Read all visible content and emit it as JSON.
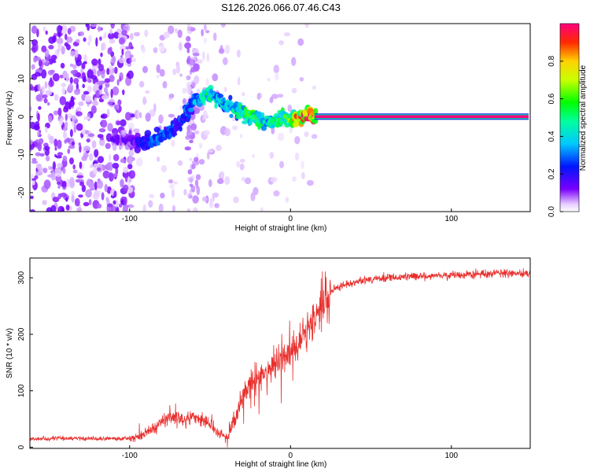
{
  "chart_data": [
    {
      "type": "heatmap",
      "title": "S126.2026.066.07.46.C43",
      "xlabel": "Height of straight line (km)",
      "ylabel": "Frequency (Hz)",
      "xlim": [
        -162,
        149
      ],
      "ylim": [
        -25,
        24.5
      ],
      "xticks": [
        -100,
        0,
        100
      ],
      "xtick_labels": [
        "-100",
        "0",
        "100"
      ],
      "yticks": [
        -20,
        -10,
        0,
        10,
        20
      ],
      "ytick_labels": [
        "-20",
        "-10",
        "0",
        "10",
        "20"
      ],
      "colorbar": {
        "label": "Normalized spectral amplitude",
        "range": [
          0,
          1
        ],
        "ticks": [
          0.0,
          0.2,
          0.4,
          0.6,
          0.8
        ],
        "tick_labels": [
          "0.0",
          "0.2",
          "0.4",
          "0.6",
          "0.8"
        ]
      },
      "ridge": {
        "description": "dominant spectral ridge (frequency in Hz vs height in km)",
        "x": [
          -100,
          -95,
          -90,
          -85,
          -80,
          -75,
          -70,
          -65,
          -60,
          -55,
          -50,
          -45,
          -40,
          -35,
          -30,
          -25,
          -20,
          -15,
          -10,
          -5,
          0,
          5,
          10,
          15,
          148
        ],
        "y": [
          -6,
          -6.5,
          -7,
          -6,
          -5,
          -4,
          -2,
          1,
          4,
          5.5,
          5.5,
          4,
          3,
          2,
          1,
          0,
          -1,
          -1.5,
          -1.5,
          -0.8,
          -0.5,
          0,
          0.3,
          0.3,
          0
        ],
        "amplitude": [
          0.15,
          0.2,
          0.25,
          0.3,
          0.32,
          0.3,
          0.3,
          0.3,
          0.35,
          0.45,
          0.5,
          0.45,
          0.4,
          0.45,
          0.55,
          0.6,
          0.55,
          0.5,
          0.5,
          0.55,
          0.7,
          0.8,
          0.9,
          0.95,
          1.0
        ]
      },
      "constant_band": {
        "x_start": 15,
        "x_end": 148,
        "frequency": 0,
        "amplitude": 1.0
      }
    },
    {
      "type": "line",
      "xlabel": "Height of straight line (km)",
      "ylabel": "SNR (10 * v/v)",
      "xlim": [
        -162,
        149
      ],
      "ylim": [
        -2,
        335
      ],
      "xticks": [
        -100,
        0,
        100
      ],
      "xtick_labels": [
        "-100",
        "0",
        "100"
      ],
      "yticks": [
        0,
        100,
        200,
        300
      ],
      "ytick_labels": [
        "0",
        "100",
        "200",
        "300"
      ],
      "series": [
        {
          "name": "SNR",
          "color": "#e8302e",
          "x": [
            -162,
            -140,
            -120,
            -100,
            -95,
            -90,
            -85,
            -80,
            -75,
            -70,
            -65,
            -60,
            -55,
            -50,
            -45,
            -40,
            -35,
            -30,
            -25,
            -20,
            -15,
            -10,
            -5,
            0,
            5,
            10,
            15,
            20,
            25,
            30,
            40,
            50,
            60,
            80,
            100,
            120,
            149
          ],
          "y": [
            12,
            14,
            13,
            14,
            18,
            25,
            35,
            42,
            55,
            50,
            45,
            55,
            50,
            40,
            25,
            15,
            45,
            90,
            115,
            125,
            135,
            150,
            160,
            170,
            185,
            205,
            225,
            255,
            275,
            285,
            293,
            297,
            300,
            303,
            305,
            307,
            308
          ]
        }
      ]
    }
  ]
}
